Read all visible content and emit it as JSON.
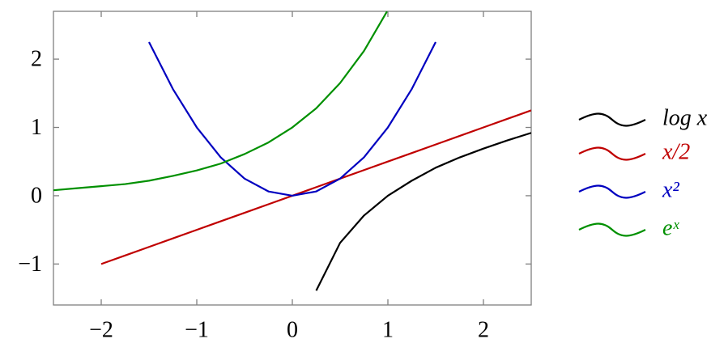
{
  "chart_data": {
    "type": "line",
    "x": [
      -2.5,
      -2.25,
      -2,
      -1.75,
      -1.5,
      -1.25,
      -1,
      -0.75,
      -0.5,
      -0.25,
      0,
      0.25,
      0.5,
      0.75,
      1,
      1.25,
      1.5,
      1.75,
      2,
      2.25,
      2.5
    ],
    "series": [
      {
        "name": "log x",
        "color": "#000000",
        "values": [
          null,
          null,
          null,
          null,
          null,
          null,
          null,
          null,
          null,
          null,
          null,
          -1.39,
          -0.69,
          -0.29,
          0,
          0.22,
          0.41,
          0.56,
          0.69,
          0.81,
          0.92
        ]
      },
      {
        "name": "x/2",
        "color": "#c00000",
        "values": [
          null,
          null,
          -1,
          -0.875,
          -0.75,
          -0.625,
          -0.5,
          -0.375,
          -0.25,
          -0.125,
          0,
          0.125,
          0.25,
          0.375,
          0.5,
          0.625,
          0.75,
          0.875,
          1,
          1.125,
          1.25
        ]
      },
      {
        "name": "x²",
        "color": "#0000c0",
        "values": [
          null,
          null,
          null,
          null,
          2.25,
          1.5625,
          1,
          0.5625,
          0.25,
          0.0625,
          0,
          0.0625,
          0.25,
          0.5625,
          1,
          1.5625,
          2.25,
          null,
          null,
          null,
          null
        ]
      },
      {
        "name": "eˣ",
        "color": "#009000",
        "values": [
          0.08,
          0.11,
          0.14,
          0.17,
          0.22,
          0.29,
          0.37,
          0.47,
          0.61,
          0.78,
          1,
          1.28,
          1.65,
          2.12,
          2.72,
          null,
          null,
          null,
          null,
          null,
          null
        ]
      }
    ],
    "xlim": [
      -2.5,
      2.5
    ],
    "ylim": [
      -1.6,
      2.7
    ],
    "xticks": [
      {
        "value": -2,
        "label": "−2"
      },
      {
        "value": -1,
        "label": "−1"
      },
      0,
      1,
      2
    ],
    "yticks": [
      {
        "value": -1,
        "label": "−1"
      },
      0,
      1,
      2
    ],
    "grid": false,
    "legend": "right"
  }
}
